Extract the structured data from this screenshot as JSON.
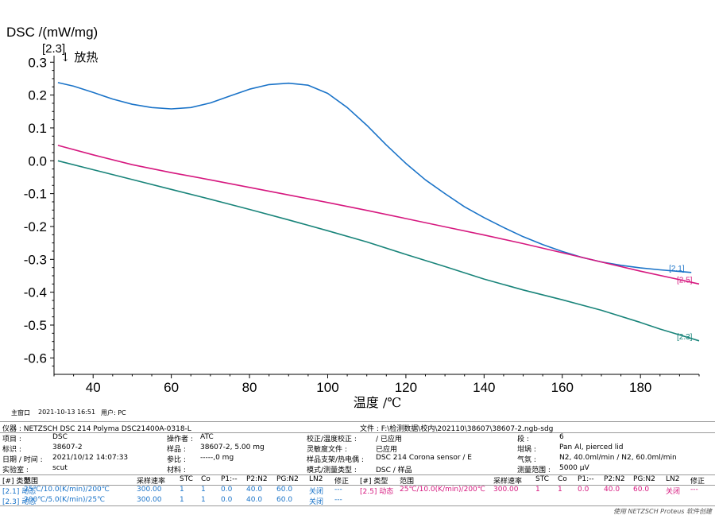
{
  "chart_data": {
    "type": "line",
    "ylabel": "DSC /(mW/mg)",
    "xlabel": "温度 /℃",
    "exo_marker": "[2.3]",
    "exo_label": "↓ 放热",
    "xlim": [
      30,
      195
    ],
    "ylim": [
      -0.65,
      0.32
    ],
    "xticks": [
      40,
      60,
      80,
      100,
      120,
      140,
      160,
      180
    ],
    "yticks": [
      0.3,
      0.2,
      0.1,
      0.0,
      -0.1,
      -0.2,
      -0.3,
      -0.4,
      -0.5,
      -0.6
    ],
    "ytick_labels": [
      "0.3",
      "0.2",
      "0.1",
      "0.0",
      "-0.1",
      "-0.2",
      "-0.3",
      "-0.4",
      "-0.5",
      "-0.6"
    ],
    "series": [
      {
        "name": "[2.1]",
        "color": "#1a73c8",
        "x": [
          31,
          35,
          40,
          45,
          50,
          55,
          60,
          65,
          70,
          75,
          80,
          85,
          90,
          95,
          100,
          105,
          110,
          115,
          120,
          125,
          130,
          135,
          140,
          145,
          150,
          155,
          160,
          165,
          170,
          175,
          180,
          185,
          190,
          193
        ],
        "y": [
          0.238,
          0.227,
          0.208,
          0.188,
          0.172,
          0.162,
          0.158,
          0.162,
          0.176,
          0.197,
          0.218,
          0.232,
          0.236,
          0.23,
          0.205,
          0.162,
          0.108,
          0.048,
          -0.008,
          -0.058,
          -0.1,
          -0.14,
          -0.173,
          -0.203,
          -0.231,
          -0.255,
          -0.276,
          -0.294,
          -0.308,
          -0.318,
          -0.326,
          -0.332,
          -0.337,
          -0.34
        ]
      },
      {
        "name": "[2.5]",
        "color": "#d6187f",
        "x": [
          31,
          40,
          50,
          60,
          70,
          80,
          90,
          100,
          110,
          120,
          130,
          140,
          150,
          160,
          170,
          180,
          190,
          195
        ],
        "y": [
          0.047,
          0.018,
          -0.012,
          -0.036,
          -0.058,
          -0.081,
          -0.104,
          -0.127,
          -0.151,
          -0.176,
          -0.201,
          -0.226,
          -0.252,
          -0.28,
          -0.308,
          -0.336,
          -0.362,
          -0.375
        ]
      },
      {
        "name": "[2.3]",
        "color": "#19847a",
        "x": [
          31,
          40,
          50,
          60,
          70,
          80,
          90,
          100,
          110,
          120,
          130,
          140,
          150,
          160,
          170,
          180,
          185,
          190,
          195
        ],
        "y": [
          0.0,
          -0.027,
          -0.057,
          -0.087,
          -0.117,
          -0.148,
          -0.18,
          -0.213,
          -0.247,
          -0.285,
          -0.322,
          -0.36,
          -0.393,
          -0.423,
          -0.455,
          -0.492,
          -0.512,
          -0.53,
          -0.548
        ]
      }
    ]
  },
  "footer": {
    "window": "主窗口",
    "datetime": "2021-10-13 16:51",
    "user": "用户: PC"
  },
  "info": {
    "instrument": "仪器 : NETZSCH DSC 214 Polyma DSC21400A-0318-L",
    "file": "文件 : F:\\检测数据\\校内\\202110\\38607\\38607-2.ngb-sdg",
    "project_label": "项目 :",
    "project": "DSC",
    "id_label": "标识 :",
    "id": "38607-2",
    "date_label": "日期 / 时间 :",
    "date": "2021/10/12 14:07:33",
    "lab_label": "实验室 :",
    "lab": "scut",
    "operator_label": "操作者 :",
    "operator": "ATC",
    "sample_label": "样品 :",
    "sample": "38607-2, 5.00 mg",
    "reference_label": "参比 :",
    "reference": "-----,0 mg",
    "material_label": "材料 :",
    "material": "",
    "calib_label": "校正/温度校正 :",
    "calib": "/ 已应用",
    "sens_label": "灵敏度文件 :",
    "sens": "已应用",
    "holder_label": "样品支架/热电偶 :",
    "holder": "DSC 214 Corona sensor / E",
    "mode_label": "模式/测量类型 :",
    "mode": "DSC / 样品",
    "segment_label": "段 :",
    "segment": "6",
    "crucible_label": "坩埚 :",
    "crucible": "Pan Al, pierced lid",
    "gas_label": "气氛 :",
    "gas": "N2, 40.0ml/min / N2, 60.0ml/min",
    "range_label": "测量范围 :",
    "range": "5000 µV"
  },
  "segments": {
    "headers": [
      "[#] 类型",
      "范围",
      "采样速率",
      "STC",
      "Co",
      "P1:--",
      "P2:N2",
      "PG:N2",
      "LN2",
      "修正"
    ],
    "rows_left": [
      [
        "[2.1] 动态",
        "25℃/10.0(K/min)/200℃",
        "300.00",
        "1",
        "1",
        "0.0",
        "40.0",
        "60.0",
        "关闭",
        "---"
      ],
      [
        "[2.3] 动态",
        "200℃/5.0(K/min)/25℃",
        "300.00",
        "1",
        "1",
        "0.0",
        "40.0",
        "60.0",
        "关闭",
        "---"
      ]
    ],
    "row_right": [
      "[2.5] 动态",
      "25℃/10.0(K/min)/200℃",
      "300.00",
      "1",
      "1",
      "0.0",
      "40.0",
      "60.0",
      "关闭",
      "---"
    ]
  },
  "credit": "使用 NETZSCH Proteus 软件创建"
}
